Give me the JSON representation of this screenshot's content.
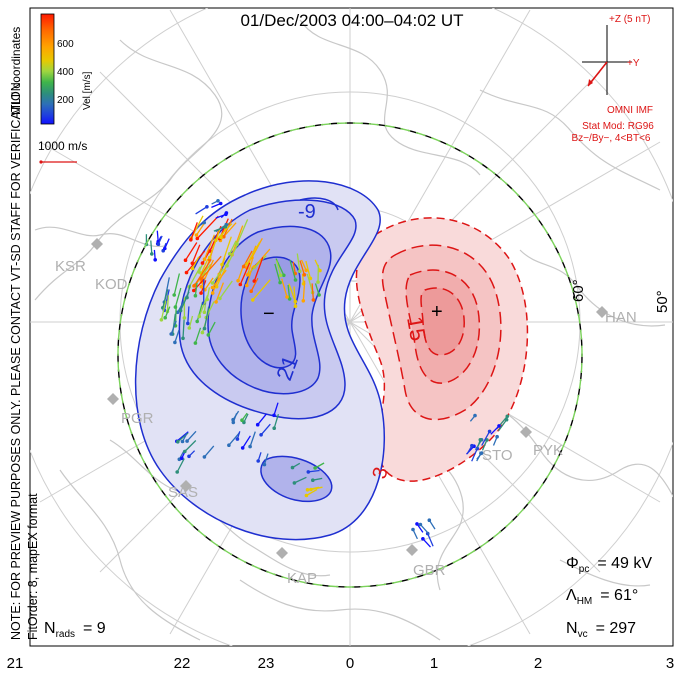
{
  "title": "01/Dec/2003 04:00–04:02 UT",
  "colorbar": {
    "unit_label": "Vel [m/s]",
    "ticks": [
      "600",
      "400",
      "200"
    ],
    "colors": [
      "#ff1a00",
      "#ff6a00",
      "#ffa400",
      "#e8c800",
      "#9fd640",
      "#3fb54a",
      "#2d8f7a",
      "#2d6fb8",
      "#1f3fdf",
      "#1010ff"
    ]
  },
  "coord_label": "MLT coordinates",
  "vector_scale_label": "1000 m/s",
  "side_note_lines": [
    "NOTE: FOR PREVIEW PURPOSES ONLY. PLEASE CONTACT VT-SD STAFF FOR VERIFICATION.",
    "FitOrder: 8, mapEX format"
  ],
  "imf": {
    "z_label": "+Z (5 nT)",
    "y_label": "+Y",
    "source": "OMNI IMF",
    "model_line1": "Stat Mod: RG96",
    "model_line2": "Bz−/By−, 4<BT<6"
  },
  "stations": [
    "KSR",
    "KOD",
    "PGR",
    "SAS",
    "KAP",
    "GBR",
    "STO",
    "PYK",
    "HAN"
  ],
  "latitude_labels": [
    "60°",
    "50°"
  ],
  "contour_labels": [
    "-9",
    "−",
    "21",
    "15",
    "3",
    "+"
  ],
  "stats": {
    "phi_symbol": "Φ",
    "phi_sub": "pc",
    "phi_value": "= 49 kV",
    "lambda_symbol": "Λ",
    "lambda_sub": "HM",
    "lambda_value": "= 61°",
    "nvc_symbol": "N",
    "nvc_sub": "vc",
    "nvc_value": "= 297",
    "nrads_symbol": "N",
    "nrads_sub": "rads",
    "nrads_value": "= 9"
  },
  "mlt_axis": [
    "21",
    "22",
    "23",
    "0",
    "1",
    "2",
    "3"
  ],
  "colors": {
    "negative_cell": "#1f2fd0",
    "positive_cell": "#dd1515",
    "boundary_green": "#7bd35a",
    "imf_red": "#dd1515"
  }
}
